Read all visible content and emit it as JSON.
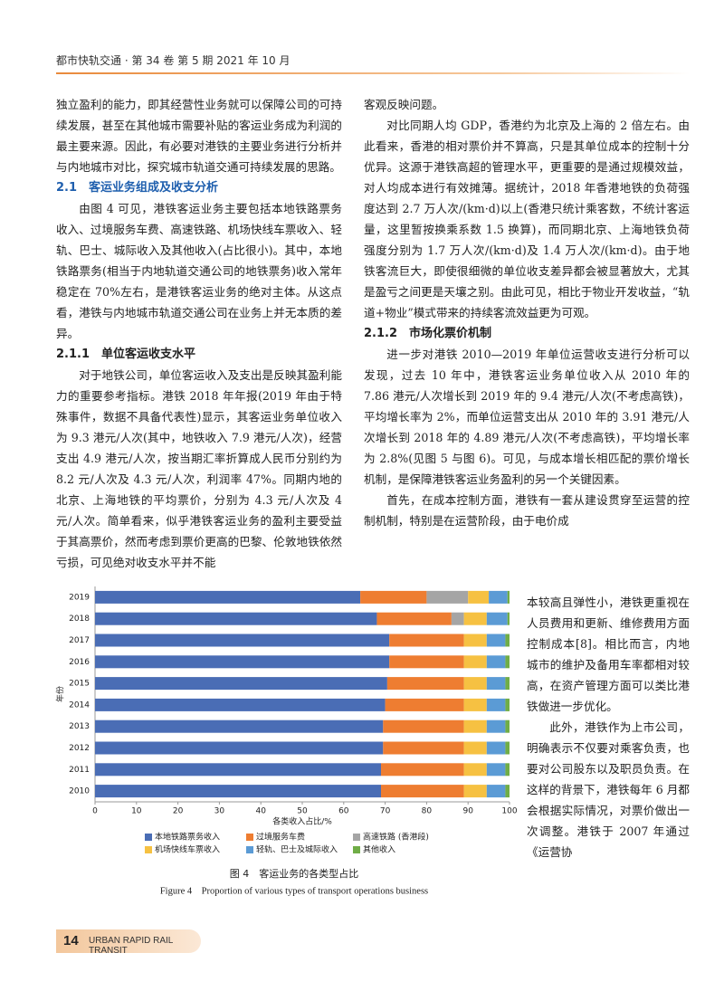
{
  "header": {
    "title": "都市快轨交通 · 第 34 卷 第 5 期 2021 年 10 月"
  },
  "left_column": [
    {
      "kind": "para-cont",
      "text": "独立盈利的能力，即其经营性业务就可以保障公司的可持续发展，甚至在其他城市需要补贴的客运业务成为利润的最主要来源。因此，有必要对港铁的主要业务进行分析并与内地城市对比，探究城市轨道交通可持续发展的思路。"
    },
    {
      "kind": "heading-blue",
      "text": "2.1　客运业务组成及收支分析"
    },
    {
      "kind": "para",
      "text": "由图 4 可见，港铁客运业务主要包括本地铁路票务收入、过境服务车费、高速铁路、机场快线车票收入、轻轨、巴士、城际收入及其他收入(占比很小)。其中，本地铁路票务(相当于内地轨道交通公司的地铁票务)收入常年稳定在 70%左右，是港铁客运业务的绝对主体。从这点看，港铁与内地城市轨道交通公司在业务上并无本质的差异。"
    },
    {
      "kind": "heading",
      "text": "2.1.1　单位客运收支水平"
    },
    {
      "kind": "para",
      "text": "对于地铁公司，单位客运收入及支出是反映其盈利能力的重要参考指标。港铁 2018 年年报(2019 年由于特殊事件，数据不具备代表性)显示，其客运业务单位收入为 9.3 港元/人次(其中，地铁收入 7.9 港元/人次)，经营支出 4.9 港元/人次，按当期汇率折算成人民币分别约为 8.2 元/人次及 4.3 元/人次，利润率 47%。同期内地的北京、上海地铁的平均票价，分别为 4.3 元/人次及 4 元/人次。简单看来，似乎港铁客运业务的盈利主要受益于其高票价，然而考虑到票价更高的巴黎、伦敦地铁依然亏损，可见绝对收支水平并不能"
    }
  ],
  "right_column": [
    {
      "kind": "para-cont",
      "text": "客观反映问题。"
    },
    {
      "kind": "para",
      "text": "对比同期人均 GDP，香港约为北京及上海的 2 倍左右。由此看来，香港的相对票价并不算高，只是其单位成本的控制十分优异。这源于港铁高超的管理水平，更重要的是通过规模效益，对人均成本进行有效摊薄。据统计，2018 年香港地铁的负荷强度达到 2.7 万人次/(km·d)以上(香港只统计乘客数，不统计客运量，这里暂按换乘系数 1.5 换算)，而同期北京、上海地铁负荷强度分别为 1.7 万人次/(km·d)及 1.4 万人次/(km·d)。由于地铁客流巨大，即使很细微的单位收支差异都会被显著放大，尤其是盈亏之间更是天壤之别。由此可见，相比于物业开发收益，“轨道+物业”模式带来的持续客流效益更为可观。"
    },
    {
      "kind": "heading",
      "text": "2.1.2　市场化票价机制"
    },
    {
      "kind": "para",
      "text": "进一步对港铁 2010—2019 年单位运营收支进行分析可以发现，过去 10 年中，港铁客运业务单位收入从 2010 年的 7.86 港元/人次增长到 2019 年的 9.4 港元/人次(不考虑高铁)，平均增长率为 2%，而单位运营支出从 2010 年的 3.91 港元/人次增长到 2018 年的 4.89 港元/人次(不考虑高铁)，平均增长率为 2.8%(见图 5 与图 6)。可见，与成本增长相匹配的票价增长机制，是保障港铁客运业务盈利的另一个关键因素。"
    },
    {
      "kind": "para",
      "text": "首先，在成本控制方面，港铁有一套从建设贯穿至运营的控制机制，特别是在运营阶段，由于电价成"
    }
  ],
  "narrow_column": [
    {
      "kind": "para-cont",
      "text": "本较高且弹性小，港铁更重视在人员费用和更新、维修费用方面控制成本[8]。相比而言，内地城市的维护及备用车率都相对较高，在资产管理方面可以类比港铁做进一步优化。"
    },
    {
      "kind": "para",
      "text": "此外，港铁作为上市公司，明确表示不仅要对乘客负责，也要对公司股东以及职员负责。在这样的背景下，港铁每年 6 月都会根据实际情况，对票价做出一次调整。港铁于 2007 年通过《运营协"
    }
  ],
  "chart_data": {
    "type": "stacked-barh",
    "caption": "图 4　客运业务的各类型占比",
    "caption_en": "Figure 4　Proportion of various types of transport operations business",
    "x_label": "各类收入占比/%",
    "y_label": "年份",
    "categories": [
      "2010",
      "2011",
      "2012",
      "2013",
      "2014",
      "2015",
      "2016",
      "2017",
      "2018",
      "2019"
    ],
    "series": [
      {
        "name": "本地铁路票务收入",
        "color": "#4a6db5",
        "values": [
          69,
          69,
          69.5,
          69.5,
          70,
          70.5,
          71,
          71,
          68,
          64
        ]
      },
      {
        "name": "过境服务车费",
        "color": "#ee7d31",
        "values": [
          20,
          20,
          19.5,
          19.5,
          19,
          18.5,
          18,
          18,
          18,
          16
        ]
      },
      {
        "name": "高速铁路 (香港段)",
        "color": "#a5a5a5",
        "values": [
          0,
          0,
          0,
          0,
          0,
          0,
          0,
          0,
          3,
          10
        ]
      },
      {
        "name": "机场快线车票收入",
        "color": "#f6c142",
        "values": [
          5.5,
          5.5,
          5.5,
          5.5,
          5.5,
          5.5,
          5.5,
          5.5,
          5.5,
          5
        ]
      },
      {
        "name": "轻轨、巴士及城际收入",
        "color": "#5b9bd5",
        "values": [
          4.5,
          4.5,
          4.5,
          4.5,
          4.5,
          4.5,
          4.5,
          4.5,
          5,
          4.5
        ]
      },
      {
        "name": "其他收入",
        "color": "#70ad47",
        "values": [
          1,
          1,
          1,
          1,
          1,
          1,
          1,
          1,
          0.5,
          0.5
        ]
      }
    ],
    "xlim": [
      0,
      100
    ],
    "xticks": [
      0,
      10,
      20,
      30,
      40,
      50,
      60,
      70,
      80,
      90,
      100
    ]
  },
  "footer": {
    "page": "14",
    "journal": "URBAN RAPID RAIL TRANSIT"
  }
}
